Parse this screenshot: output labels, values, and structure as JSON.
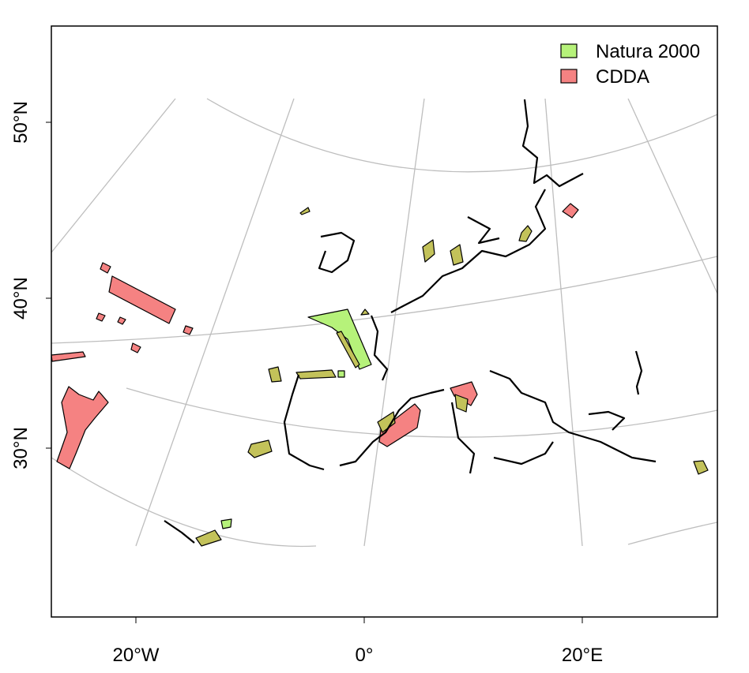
{
  "axes": {
    "y_labels": [
      "50°N",
      "40°N",
      "30°N"
    ],
    "x_labels": [
      "20°W",
      "0°",
      "20°E"
    ]
  },
  "legend": {
    "items": [
      {
        "label": "Natura 2000",
        "color": "#b6f27a"
      },
      {
        "label": "CDDA",
        "color": "#f58282"
      }
    ]
  }
}
